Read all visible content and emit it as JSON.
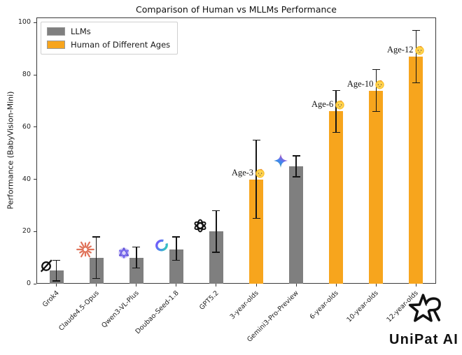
{
  "watermark": {
    "brand": "UniPat AI"
  },
  "chart_data": {
    "type": "bar",
    "title": "Comparison of Human vs MLLMs Performance",
    "xlabel": "",
    "ylabel": "Performance (BabyVision-Mini)",
    "ylim": [
      0,
      102
    ],
    "yticks": [
      0,
      20,
      40,
      60,
      80,
      100
    ],
    "grid": false,
    "legend_position": "upper-left",
    "legend": [
      {
        "label": "LLMs",
        "color": "#7f7f7f"
      },
      {
        "label": "Human of Different Ages",
        "color": "#F7A51D"
      }
    ],
    "error_color": "#151515",
    "bars": [
      {
        "category": "Grok4",
        "value": 5,
        "err_minus": 4,
        "err_plus": 4,
        "series": "LLMs",
        "icon": "grok-icon"
      },
      {
        "category": "Claude4.5-Opus",
        "value": 10,
        "err_minus": 8,
        "err_plus": 8,
        "series": "LLMs",
        "icon": "claude-icon"
      },
      {
        "category": "Qwen3-VL-Plus",
        "value": 10,
        "err_minus": 4,
        "err_plus": 4,
        "series": "LLMs",
        "icon": "qwen-icon"
      },
      {
        "category": "Doubao-Seed-1.8",
        "value": 13,
        "err_minus": 4,
        "err_plus": 5,
        "series": "LLMs",
        "icon": "doubao-icon"
      },
      {
        "category": "GPT5.2",
        "value": 20,
        "err_minus": 8,
        "err_plus": 8,
        "series": "LLMs",
        "icon": "openai-icon"
      },
      {
        "category": "3-year-olds",
        "value": 40,
        "err_minus": 15,
        "err_plus": 15,
        "series": "Human of Different Ages",
        "icon": "baby-icon",
        "annotation": "Age-3"
      },
      {
        "category": "Gemini3-Pro-Preview",
        "value": 45,
        "err_minus": 4,
        "err_plus": 4,
        "series": "LLMs",
        "icon": "gemini-icon"
      },
      {
        "category": "6-year-olds",
        "value": 66,
        "err_minus": 8,
        "err_plus": 8,
        "series": "Human of Different Ages",
        "icon": "baby-icon",
        "annotation": "Age-6"
      },
      {
        "category": "10-year-olds",
        "value": 74,
        "err_minus": 8,
        "err_plus": 8,
        "series": "Human of Different Ages",
        "icon": "baby-icon",
        "annotation": "Age-10"
      },
      {
        "category": "12-year-olds",
        "value": 87,
        "err_minus": 10,
        "err_plus": 10,
        "series": "Human of Different Ages",
        "icon": "baby-icon",
        "annotation": "Age-12"
      }
    ]
  }
}
